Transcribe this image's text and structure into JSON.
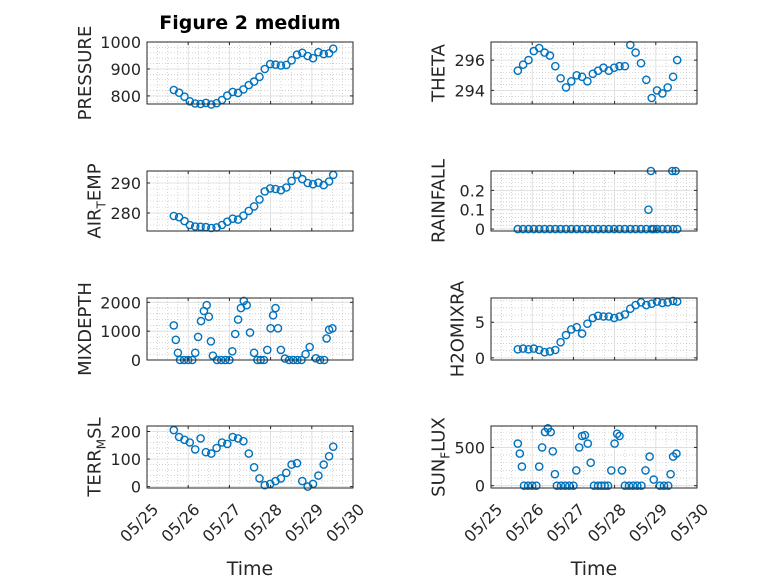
{
  "figure": {
    "title": "Figure 2 medium"
  },
  "colors": {
    "marker": "#0072BD",
    "axis": "#262626",
    "grid": "#b8b8b8",
    "background": "#ffffff"
  },
  "chart_data": [
    {
      "type": "scatter",
      "ylabel": "PRESSURE",
      "ylabel_sub": "",
      "ylim": [
        770,
        1000
      ],
      "yticks": [
        800,
        900,
        1000
      ],
      "yticklabels": [
        "800",
        "900",
        "1000"
      ],
      "grid": true,
      "minor_grid": true,
      "x": [
        25.65,
        25.78,
        25.91,
        26.04,
        26.17,
        26.3,
        26.43,
        26.56,
        26.69,
        26.82,
        26.95,
        27.08,
        27.21,
        27.34,
        27.47,
        27.6,
        27.73,
        27.86,
        27.99,
        28.12,
        28.25,
        28.38,
        28.51,
        28.64,
        28.77,
        28.9,
        29.03,
        29.16,
        29.29,
        29.42,
        29.52
      ],
      "y": [
        822,
        812,
        797,
        780,
        772,
        770,
        774,
        768,
        773,
        785,
        801,
        815,
        811,
        824,
        840,
        853,
        871,
        900,
        918,
        916,
        913,
        915,
        932,
        953,
        960,
        948,
        940,
        962,
        955,
        958,
        975
      ]
    },
    {
      "type": "scatter",
      "ylabel": "THETA",
      "ylabel_sub": "",
      "ylim": [
        293.1,
        297.2
      ],
      "yticks": [
        294,
        296
      ],
      "yticklabels": [
        "294",
        "296"
      ],
      "grid": true,
      "minor_grid": true,
      "x": [
        25.65,
        25.78,
        25.91,
        26.04,
        26.17,
        26.3,
        26.43,
        26.56,
        26.69,
        26.82,
        26.95,
        27.08,
        27.21,
        27.34,
        27.47,
        27.6,
        27.73,
        27.86,
        27.99,
        28.12,
        28.25,
        28.38,
        28.51,
        28.64,
        28.77,
        28.9,
        29.03,
        29.16,
        29.29,
        29.42,
        29.52
      ],
      "y": [
        295.3,
        295.7,
        296.0,
        296.6,
        296.8,
        296.5,
        296.3,
        295.6,
        294.8,
        294.2,
        294.6,
        295.0,
        294.9,
        294.6,
        295.1,
        295.3,
        295.5,
        295.3,
        295.5,
        295.6,
        295.6,
        297.0,
        296.5,
        295.8,
        294.7,
        293.5,
        294.0,
        293.8,
        294.2,
        294.9,
        296.0
      ]
    },
    {
      "type": "scatter",
      "ylabel": "AIR",
      "ylabel_sub": "T",
      "ylabel_suffix": "EMP",
      "ylim": [
        274,
        294
      ],
      "yticks": [
        280,
        290
      ],
      "yticklabels": [
        "280",
        "290"
      ],
      "grid": true,
      "minor_grid": true,
      "x": [
        25.65,
        25.78,
        25.91,
        26.04,
        26.17,
        26.3,
        26.43,
        26.56,
        26.69,
        26.82,
        26.95,
        27.08,
        27.21,
        27.34,
        27.47,
        27.6,
        27.73,
        27.86,
        27.99,
        28.12,
        28.25,
        28.38,
        28.51,
        28.64,
        28.77,
        28.9,
        29.03,
        29.16,
        29.29,
        29.42,
        29.52
      ],
      "y": [
        279.0,
        278.6,
        277.3,
        276.0,
        275.5,
        275.4,
        275.3,
        275.0,
        275.2,
        276.0,
        277.1,
        278.1,
        277.8,
        279.1,
        280.7,
        282.2,
        284.5,
        287.2,
        288.2,
        288.0,
        287.6,
        288.5,
        290.7,
        292.8,
        291.3,
        290.0,
        289.6,
        290.1,
        289.3,
        290.5,
        292.7
      ]
    },
    {
      "type": "scatter",
      "ylabel": "RAINFALL",
      "ylabel_sub": "",
      "ylim": [
        -0.01,
        0.3
      ],
      "yticks": [
        0,
        0.1,
        0.2
      ],
      "yticklabels": [
        "0",
        "0.1",
        "0.2"
      ],
      "grid": true,
      "minor_grid": true,
      "x": [
        25.65,
        25.78,
        25.91,
        26.04,
        26.17,
        26.3,
        26.43,
        26.56,
        26.69,
        26.82,
        26.95,
        27.08,
        27.21,
        27.34,
        27.47,
        27.6,
        27.73,
        27.86,
        27.99,
        28.12,
        28.25,
        28.38,
        28.51,
        28.64,
        28.77,
        28.9,
        28.95,
        29.03,
        29.16,
        29.29,
        29.42,
        29.52,
        28.82,
        28.88,
        29.4,
        29.48
      ],
      "y": [
        0,
        0,
        0,
        0,
        0,
        0,
        0,
        0,
        0,
        0,
        0,
        0,
        0,
        0,
        0,
        0,
        0,
        0,
        0,
        0,
        0,
        0,
        0,
        0,
        0,
        0,
        0,
        0,
        0,
        0,
        0,
        0,
        0.1,
        0.3,
        0.3,
        0.3
      ]
    },
    {
      "type": "scatter",
      "ylabel": "MIXDEPTH",
      "ylabel_sub": "",
      "ylim": [
        0,
        2150
      ],
      "yticks": [
        0,
        1000,
        2000
      ],
      "yticklabels": [
        "0",
        "1000",
        "2000"
      ],
      "grid": true,
      "minor_grid": true,
      "x": [
        25.65,
        25.7,
        25.75,
        25.8,
        25.9,
        26.0,
        26.1,
        26.17,
        26.24,
        26.31,
        26.38,
        26.45,
        26.5,
        26.55,
        26.6,
        26.7,
        26.8,
        26.9,
        27.0,
        27.07,
        27.14,
        27.21,
        27.28,
        27.35,
        27.42,
        27.5,
        27.6,
        27.68,
        27.76,
        27.84,
        27.92,
        28.0,
        28.06,
        28.12,
        28.18,
        28.25,
        28.35,
        28.45,
        28.55,
        28.65,
        28.75,
        28.85,
        28.95,
        29.1,
        29.2,
        29.3,
        29.36,
        29.42,
        29.5
      ],
      "y": [
        1200,
        700,
        250,
        0,
        0,
        0,
        0,
        250,
        800,
        1350,
        1700,
        1900,
        1500,
        650,
        150,
        0,
        0,
        0,
        0,
        300,
        900,
        1400,
        1800,
        2050,
        1900,
        950,
        250,
        0,
        0,
        0,
        350,
        1100,
        1550,
        1800,
        1100,
        350,
        50,
        0,
        0,
        0,
        0,
        200,
        450,
        60,
        0,
        0,
        750,
        1050,
        1100
      ]
    },
    {
      "type": "scatter",
      "ylabel": "H2OMIXRA",
      "ylabel_sub": "",
      "ylim": [
        -0.3,
        8.4
      ],
      "yticks": [
        0,
        5
      ],
      "yticklabels": [
        "0",
        "5"
      ],
      "grid": true,
      "minor_grid": true,
      "x": [
        25.65,
        25.78,
        25.91,
        26.04,
        26.17,
        26.3,
        26.43,
        26.56,
        26.69,
        26.82,
        26.95,
        27.08,
        27.21,
        27.34,
        27.47,
        27.6,
        27.73,
        27.86,
        27.99,
        28.12,
        28.25,
        28.38,
        28.51,
        28.64,
        28.77,
        28.9,
        29.03,
        29.16,
        29.29,
        29.42,
        29.52
      ],
      "y": [
        1.2,
        1.3,
        1.2,
        1.3,
        1.1,
        0.8,
        0.9,
        1.1,
        2.2,
        3.2,
        4.0,
        4.3,
        3.4,
        4.8,
        5.6,
        5.9,
        5.8,
        5.8,
        5.6,
        5.8,
        6.1,
        6.9,
        7.4,
        7.8,
        7.4,
        7.6,
        7.9,
        7.7,
        7.8,
        8.0,
        7.9
      ]
    },
    {
      "type": "scatter",
      "ylabel": "TERR",
      "ylabel_sub": "M",
      "ylabel_suffix": "SL",
      "ylim": [
        -5,
        220
      ],
      "yticks": [
        0,
        100,
        200
      ],
      "yticklabels": [
        "0",
        "100",
        "200"
      ],
      "grid": true,
      "minor_grid": true,
      "x": [
        25.65,
        25.78,
        25.91,
        26.04,
        26.17,
        26.3,
        26.43,
        26.56,
        26.69,
        26.82,
        26.95,
        27.08,
        27.21,
        27.34,
        27.47,
        27.6,
        27.73,
        27.86,
        27.99,
        28.12,
        28.25,
        28.38,
        28.51,
        28.64,
        28.77,
        28.9,
        29.03,
        29.16,
        29.29,
        29.42,
        29.52
      ],
      "y": [
        205,
        180,
        170,
        160,
        135,
        175,
        125,
        120,
        140,
        160,
        155,
        180,
        175,
        165,
        120,
        70,
        30,
        5,
        10,
        20,
        30,
        50,
        80,
        85,
        20,
        0,
        10,
        40,
        80,
        110,
        145
      ]
    },
    {
      "type": "scatter",
      "ylabel": "SUN",
      "ylabel_sub": "F",
      "ylabel_suffix": "LUX",
      "ylim": [
        -30,
        780
      ],
      "yticks": [
        0,
        500
      ],
      "yticklabels": [
        "0",
        "500"
      ],
      "grid": true,
      "minor_grid": true,
      "x": [
        25.65,
        25.7,
        25.75,
        25.8,
        25.9,
        26.0,
        26.1,
        26.17,
        26.24,
        26.31,
        26.38,
        26.45,
        26.5,
        26.55,
        26.6,
        26.7,
        26.8,
        26.9,
        27.0,
        27.07,
        27.14,
        27.21,
        27.28,
        27.35,
        27.42,
        27.5,
        27.6,
        27.68,
        27.76,
        27.84,
        27.92,
        28.0,
        28.06,
        28.12,
        28.18,
        28.25,
        28.35,
        28.45,
        28.55,
        28.65,
        28.75,
        28.85,
        28.95,
        29.1,
        29.2,
        29.3,
        29.36,
        29.42,
        29.5
      ],
      "y": [
        550,
        420,
        250,
        0,
        0,
        0,
        0,
        250,
        500,
        700,
        750,
        700,
        450,
        150,
        0,
        0,
        0,
        0,
        0,
        200,
        500,
        650,
        660,
        550,
        300,
        0,
        0,
        0,
        0,
        0,
        200,
        550,
        680,
        650,
        200,
        0,
        0,
        0,
        0,
        0,
        200,
        380,
        80,
        0,
        0,
        0,
        150,
        380,
        420
      ]
    }
  ],
  "xaxis": {
    "xlim": [
      25,
      30
    ],
    "ticks": [
      25,
      26,
      27,
      28,
      29,
      30
    ],
    "ticklabels": [
      "05/25",
      "05/26",
      "05/27",
      "05/28",
      "05/29",
      "05/30"
    ],
    "xlabel": "Time"
  }
}
